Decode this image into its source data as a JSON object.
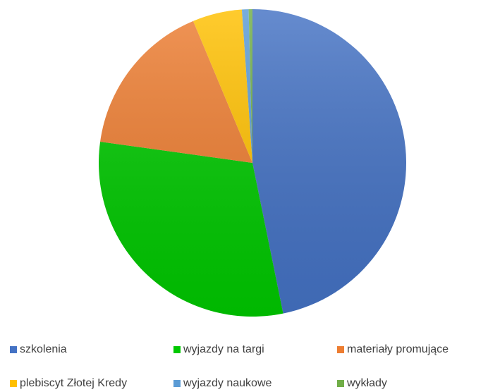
{
  "chart_data": {
    "type": "pie",
    "categories": [
      "szkolenia",
      "wyjazdy na targi",
      "materiały promujące",
      "plebiscyt Złotej Kredy",
      "wyjazdy naukowe",
      "wykłady"
    ],
    "values": [
      46.8,
      30.4,
      16.5,
      5.2,
      0.7,
      0.4
    ],
    "colors": [
      "#4472c4",
      "#00c800",
      "#ed7d31",
      "#ffc000",
      "#5b9bd5",
      "#70ad47"
    ],
    "legend": "bottom"
  }
}
